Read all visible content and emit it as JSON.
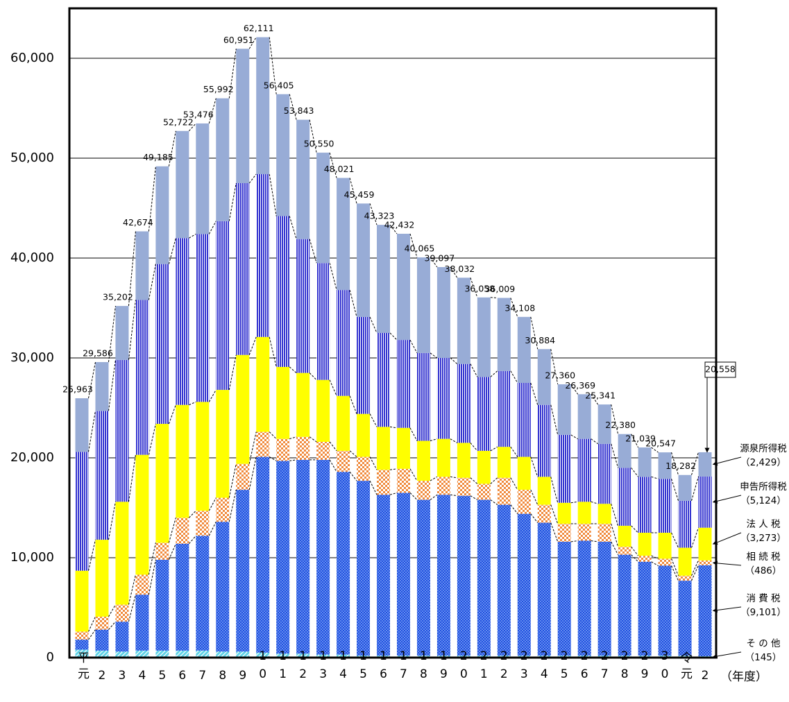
{
  "chart_data": {
    "type": "stacked_bar",
    "categories": [
      "平元",
      "2",
      "3",
      "4",
      "5",
      "6",
      "7",
      "8",
      "9",
      "10",
      "11",
      "12",
      "13",
      "14",
      "15",
      "16",
      "17",
      "18",
      "19",
      "20",
      "21",
      "22",
      "23",
      "24",
      "25",
      "26",
      "27",
      "28",
      "29",
      "30",
      "令元",
      "2"
    ],
    "x_label": "（年度）",
    "ylim": [
      0,
      65000
    ],
    "yticks": [
      0,
      {
        "value": 10000,
        "label": "10,000"
      },
      {
        "value": 20000,
        "label": "20,000"
      },
      {
        "value": 30000,
        "label": "30,000"
      },
      {
        "value": 40000,
        "label": "40,000"
      },
      {
        "value": 50000,
        "label": "50,000"
      },
      {
        "value": 60000,
        "label": "60,000"
      }
    ],
    "grid": true,
    "series": [
      {
        "name": "そ の 他",
        "legend_note": "（145）",
        "color": "#5fd3e6",
        "pattern": "hatch",
        "values": [
          800,
          700,
          600,
          700,
          700,
          700,
          700,
          600,
          600,
          500,
          400,
          400,
          300,
          300,
          200,
          200,
          200,
          200,
          200,
          200,
          200,
          200,
          200,
          200,
          200,
          200,
          200,
          200,
          200,
          200,
          200,
          145
        ]
      },
      {
        "name": "消 費 税",
        "legend_note": "（9,101）",
        "color": "#1f4fe0",
        "pattern": "dots",
        "values": [
          1000,
          2100,
          3000,
          5600,
          9100,
          10700,
          11500,
          13000,
          16200,
          19600,
          19300,
          19400,
          19500,
          18300,
          17500,
          16100,
          16300,
          15600,
          16100,
          16000,
          15600,
          15100,
          14200,
          13300,
          11400,
          11500,
          11400,
          10100,
          9400,
          9000,
          7500,
          9101
        ]
      },
      {
        "name": "相 続 税",
        "legend_note": "（486）",
        "color": "#f08a3c",
        "pattern": "check",
        "values": [
          800,
          1300,
          1700,
          2000,
          1700,
          2600,
          2500,
          2400,
          2600,
          2500,
          2200,
          2300,
          1800,
          2100,
          2400,
          2500,
          2400,
          1900,
          1800,
          1800,
          1600,
          2700,
          2400,
          1800,
          1800,
          1700,
          1800,
          800,
          600,
          700,
          500,
          486
        ]
      },
      {
        "name": "法 人 税",
        "legend_note": "（3,273）",
        "color": "#ffff00",
        "pattern": "solid",
        "values": [
          6100,
          7700,
          10300,
          12000,
          11900,
          11300,
          10900,
          10800,
          10900,
          9500,
          7200,
          6400,
          6200,
          5500,
          4300,
          4300,
          4100,
          4000,
          3800,
          3500,
          3300,
          3100,
          3300,
          2800,
          2100,
          2200,
          2000,
          2100,
          2300,
          2600,
          2800,
          3273
        ]
      },
      {
        "name": "申告所得税",
        "legend_note": "（5,124）",
        "color": "#3535d0",
        "pattern": "vstripe",
        "values": [
          11900,
          12900,
          14200,
          15500,
          16000,
          16700,
          16800,
          16900,
          17200,
          16300,
          15100,
          13400,
          11700,
          10600,
          9700,
          9400,
          8800,
          8800,
          8100,
          7900,
          7400,
          7600,
          7400,
          7200,
          6800,
          6300,
          6000,
          5800,
          5600,
          5400,
          4700,
          5124
        ]
      },
      {
        "name": "源泉所得税",
        "legend_note": "（2,429）",
        "color": "#98acd6",
        "pattern": "solid",
        "values": [
          5363,
          4886,
          5402,
          6874,
          9785,
          10722,
          11076,
          12292,
          13451,
          13711,
          12205,
          11943,
          11050,
          11221,
          11359,
          10823,
          10632,
          9565,
          9097,
          8632,
          7958,
          7309,
          6608,
          5584,
          5060,
          4469,
          3941,
          3380,
          2939,
          2647,
          2582,
          2429
        ]
      }
    ],
    "totals": {
      "values": [
        25963,
        29586,
        35202,
        42674,
        49185,
        52722,
        53476,
        55992,
        60951,
        62111,
        56405,
        53843,
        50550,
        48021,
        45459,
        43323,
        42432,
        40065,
        39097,
        38032,
        36058,
        36009,
        34108,
        30884,
        27360,
        26369,
        25341,
        22380,
        21039,
        20547,
        18282,
        20558
      ],
      "value_labels": [
        "25,963",
        "29,586",
        "35,202",
        "42,674",
        "49,185",
        "52,722",
        "53,476",
        "55,992",
        "60,951",
        "62,111",
        "56,405",
        "53,843",
        "50,550",
        "48,021",
        "45,459",
        "43,323",
        "42,432",
        "40,065",
        "39,097",
        "38,032",
        "36,058",
        "36,009",
        "34,108",
        "30,884",
        "27,360",
        "26,369",
        "25,341",
        "22,380",
        "21,039",
        "20,547",
        "18,282",
        "20,558"
      ]
    }
  }
}
